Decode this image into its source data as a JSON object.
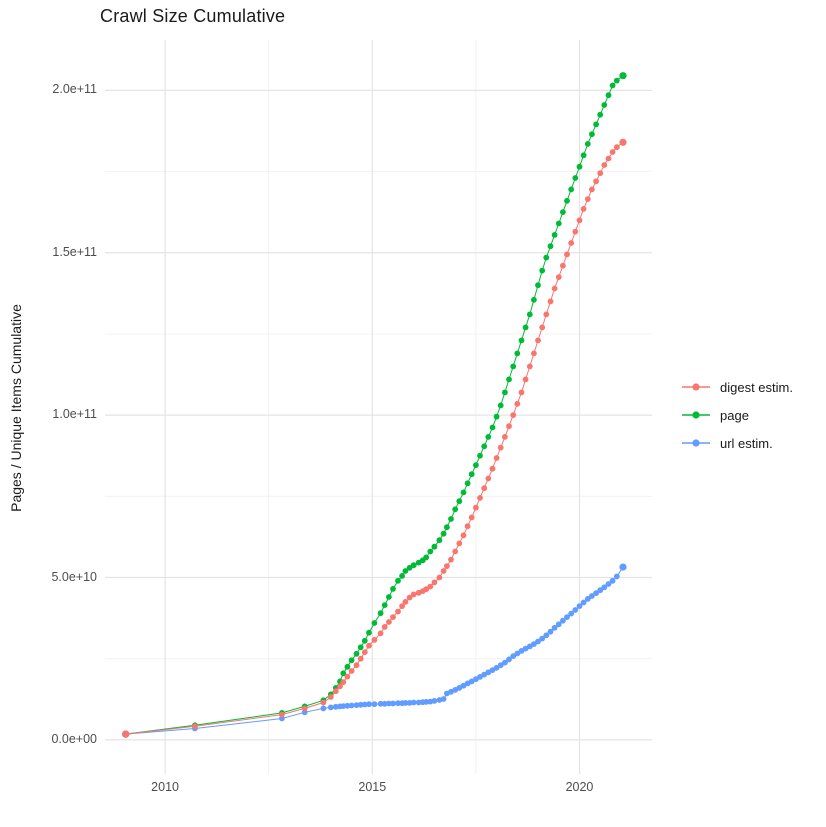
{
  "title": "Crawl Size Cumulative",
  "axes": {
    "y_title": "Pages / Unique Items Cumulative",
    "y_tick_labels": [
      "0.0e+00",
      "5.0e+10",
      "1.0e+11",
      "1.5e+11",
      "2.0e+11"
    ],
    "x_tick_labels": [
      "2010",
      "2015",
      "2020"
    ]
  },
  "legend": {
    "items": [
      {
        "label": "digest estim.",
        "color": "#F8766D"
      },
      {
        "label": "page",
        "color": "#00BA38"
      },
      {
        "label": "url estim.",
        "color": "#619CFF"
      }
    ]
  },
  "colors": {
    "grid_major": "#e4e4e4",
    "grid_minor": "#f0f0f0",
    "tick_text": "#4d4d4d",
    "title_text": "#1a1a1a"
  },
  "chart_data": {
    "type": "line",
    "title": "Crawl Size Cumulative",
    "xlabel": "",
    "ylabel": "Pages / Unique Items Cumulative",
    "value_unit": "1e9 (billions of pages / unique items)",
    "x_unit": "year (decimal)",
    "grid": true,
    "legend_position": "right",
    "xlim": [
      2008.55,
      2021.75
    ],
    "ylim_e9": [
      -10.5,
      215.5
    ],
    "x_tick_years": [
      2010,
      2015,
      2020
    ],
    "x_minor_years": [
      2012.5,
      2017.5
    ],
    "y_tick_values_e9": [
      0,
      50,
      100,
      150,
      200
    ],
    "y_minor_values_e9": [
      25,
      75,
      125,
      175
    ],
    "y_tick_labels": [
      "0.0e+00",
      "5.0e+10",
      "1.0e+11",
      "1.5e+11",
      "2.0e+11"
    ],
    "x": [
      2009.05,
      2010.72,
      2012.82,
      2013.37,
      2013.82,
      2014.0,
      2014.12,
      2014.22,
      2014.3,
      2014.4,
      2014.5,
      2014.62,
      2014.72,
      2014.82,
      2014.92,
      2015.05,
      2015.2,
      2015.3,
      2015.4,
      2015.5,
      2015.62,
      2015.72,
      2015.8,
      2015.9,
      2016.0,
      2016.12,
      2016.22,
      2016.3,
      2016.4,
      2016.5,
      2016.62,
      2016.72,
      2016.8,
      2016.9,
      2017.0,
      2017.1,
      2017.2,
      2017.3,
      2017.4,
      2017.5,
      2017.6,
      2017.7,
      2017.8,
      2017.9,
      2018.0,
      2018.1,
      2018.2,
      2018.3,
      2018.4,
      2018.5,
      2018.6,
      2018.7,
      2018.8,
      2018.9,
      2019.0,
      2019.1,
      2019.2,
      2019.3,
      2019.4,
      2019.5,
      2019.6,
      2019.7,
      2019.8,
      2019.9,
      2020.0,
      2020.1,
      2020.2,
      2020.3,
      2020.4,
      2020.5,
      2020.6,
      2020.7,
      2020.8,
      2020.9,
      2021.05
    ],
    "series": [
      {
        "name": "digest estim.",
        "color": "#F8766D",
        "values_e9": [
          1.8,
          4.2,
          7.8,
          9.7,
          11.5,
          13.2,
          15.0,
          16.5,
          17.8,
          19.5,
          21.2,
          23.0,
          25.0,
          27.0,
          29.0,
          30.8,
          32.8,
          34.8,
          36.3,
          37.8,
          39.5,
          41.2,
          42.5,
          43.8,
          44.8,
          45.3,
          45.8,
          46.4,
          47.2,
          48.5,
          50.0,
          52.0,
          53.5,
          55.5,
          58.0,
          60.5,
          63.0,
          65.8,
          68.5,
          71.5,
          74.5,
          77.5,
          80.5,
          83.5,
          86.8,
          90.0,
          93.3,
          96.6,
          100,
          103.5,
          107,
          111,
          115,
          119,
          123,
          127,
          131,
          135,
          139,
          142.5,
          146,
          149.5,
          153,
          156.5,
          160,
          163.5,
          166.5,
          169.5,
          172,
          174.5,
          177,
          179,
          181,
          182.5,
          184
        ]
      },
      {
        "name": "page",
        "color": "#00BA38",
        "values_e9": [
          1.8,
          4.5,
          8.3,
          10.3,
          12.2,
          14.0,
          16.0,
          18.0,
          20.5,
          22.5,
          24.5,
          26.5,
          28.5,
          30.5,
          33.0,
          36.0,
          39.0,
          41.5,
          44.0,
          46.5,
          49.0,
          50.5,
          52.0,
          53.0,
          53.8,
          54.6,
          55.3,
          56.2,
          58.0,
          59.5,
          61.5,
          63.5,
          65.5,
          68.0,
          71.0,
          73.5,
          76.2,
          79.0,
          81.8,
          84.6,
          87.5,
          90.4,
          93.3,
          96.2,
          99.5,
          103,
          107,
          111,
          115,
          119,
          123,
          127,
          131,
          135.5,
          140,
          144.5,
          148.5,
          152,
          155.5,
          159,
          162.5,
          166,
          169.5,
          173,
          176.5,
          180,
          183.5,
          186.5,
          189.5,
          192.5,
          195.5,
          198.5,
          201.5,
          203,
          204.5
        ]
      },
      {
        "name": "url estim.",
        "color": "#619CFF",
        "values_e9": [
          1.8,
          3.5,
          6.6,
          8.5,
          9.7,
          10.0,
          10.2,
          10.3,
          10.4,
          10.5,
          10.6,
          10.7,
          10.8,
          10.9,
          11.0,
          11.0,
          11.1,
          11.1,
          11.2,
          11.2,
          11.3,
          11.3,
          11.4,
          11.4,
          11.5,
          11.5,
          11.6,
          11.7,
          11.8,
          12.0,
          12.3,
          12.6,
          14.3,
          14.8,
          15.4,
          16.0,
          16.7,
          17.4,
          18.0,
          18.7,
          19.4,
          20.1,
          20.8,
          21.5,
          22.2,
          23.0,
          23.8,
          24.8,
          25.8,
          26.6,
          27.4,
          28.1,
          28.8,
          29.5,
          30.3,
          31.2,
          32.2,
          33.3,
          34.5,
          35.6,
          36.7,
          37.8,
          38.9,
          40.0,
          41.2,
          42.3,
          43.4,
          44.3,
          45.2,
          46.1,
          47.0,
          48.0,
          49.0,
          50.3,
          53.2
        ]
      }
    ]
  }
}
